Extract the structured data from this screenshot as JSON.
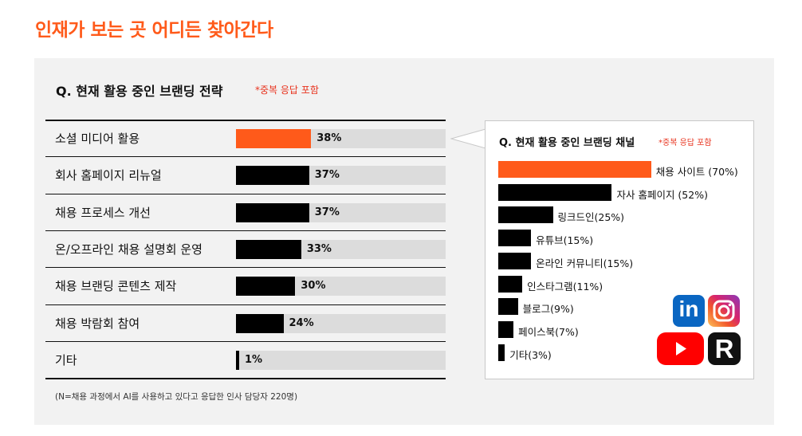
{
  "headline": "인재가 보는 곳 어디든 찾아간다",
  "colors": {
    "accent": "#ff5a1a",
    "bar": "#000000",
    "track": "#dcdcdc",
    "note": "#e8331e",
    "panel": "#f2f2f2"
  },
  "chart_data": [
    {
      "type": "bar",
      "orientation": "horizontal",
      "title": "Q. 현재 활용 중인 브랜딩 전략",
      "note": "*중복 응답 포함",
      "categories": [
        "소셜 미디어 활용",
        "회사 홈페이지 리뉴얼",
        "채용 프로세스 개선",
        "온/오프라인 채용 설명회 운영",
        "채용 브랜딩 콘텐츠 제작",
        "채용 박람회 참여",
        "기타"
      ],
      "values": [
        38,
        37,
        37,
        33,
        30,
        24,
        1
      ],
      "value_labels": [
        "38%",
        "37%",
        "37%",
        "33%",
        "30%",
        "24%",
        "1%"
      ],
      "highlight_index": 0,
      "unit": "%",
      "xlim": [
        0,
        100
      ]
    },
    {
      "type": "bar",
      "orientation": "horizontal",
      "title": "Q. 현재 활용 중인 브랜딩 채널",
      "note": "*중복 응답 포함",
      "categories": [
        "채용 사이트",
        "자사 홈페이지",
        "링크드인",
        "유튜브",
        "온라인 커뮤니티",
        "인스타그램",
        "블로그",
        "페이스북",
        "기타"
      ],
      "values": [
        70,
        52,
        25,
        15,
        15,
        11,
        9,
        7,
        3
      ],
      "value_labels": [
        "채용 사이트 (70%)",
        "자사 홈페이지 (52%)",
        "링크드인(25%)",
        "유튜브(15%)",
        "온라인 커뮤니티(15%)",
        "인스타그램(11%)",
        "블로그(9%)",
        "페이스북(7%)",
        "기타(3%)"
      ],
      "highlight_index": 0,
      "unit": "%",
      "xlim": [
        0,
        100
      ]
    }
  ],
  "footnote": "(N=채용 과정에서 AI를 사용하고 있다고 응답한 인사 담당자 220명)",
  "logos": {
    "linkedin": "in",
    "instagram": "instagram-icon",
    "youtube": "youtube-icon",
    "r": "R"
  }
}
